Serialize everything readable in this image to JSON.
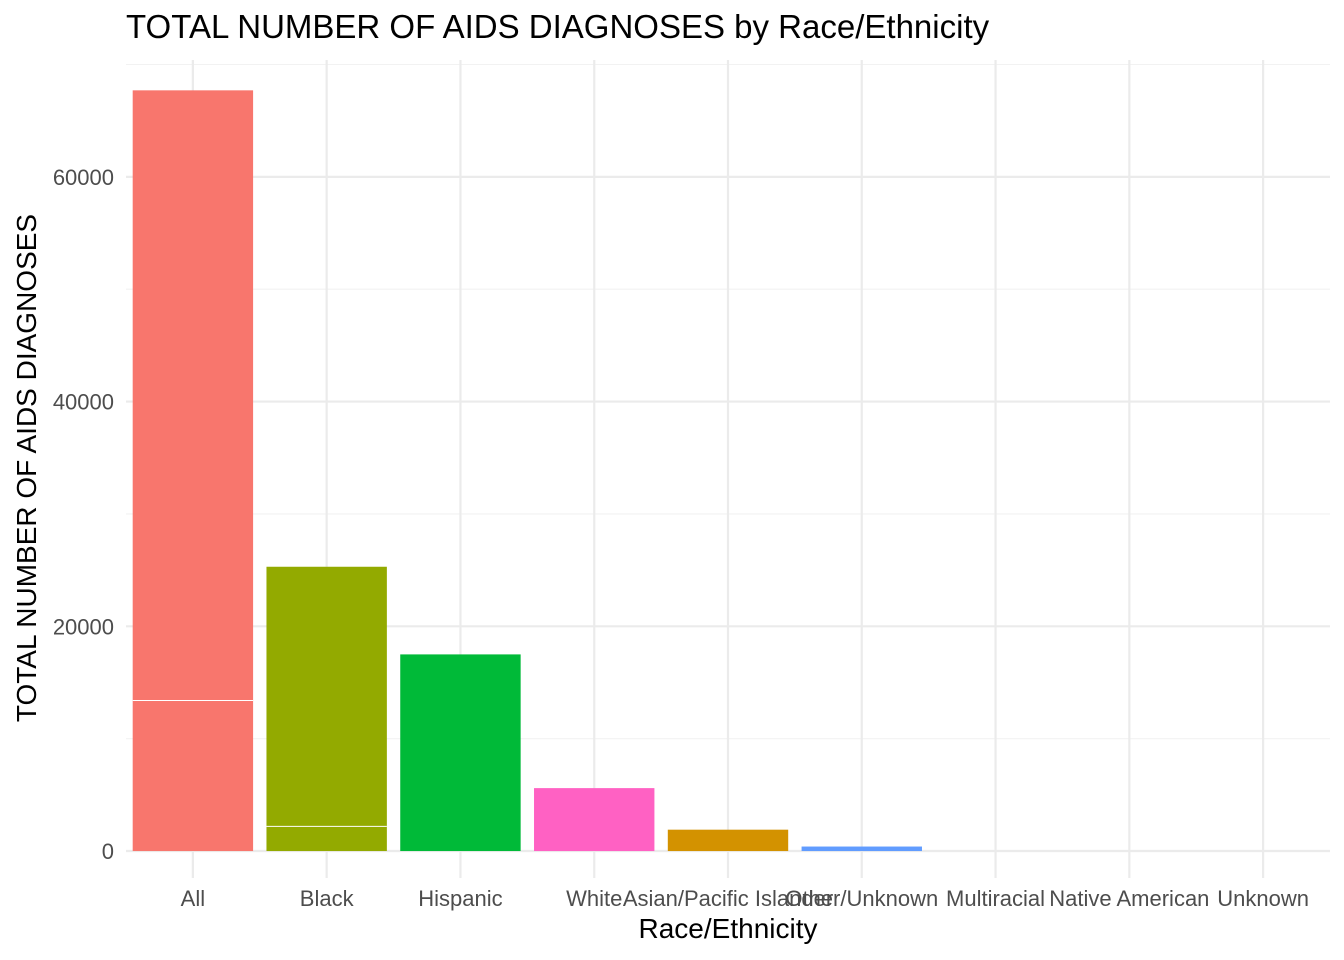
{
  "chart_data": {
    "type": "bar",
    "title": "TOTAL NUMBER OF AIDS DIAGNOSES by Race/Ethnicity",
    "xlabel": "Race/Ethnicity",
    "ylabel": "TOTAL NUMBER OF AIDS DIAGNOSES",
    "categories": [
      "All",
      "Black",
      "Hispanic",
      "White",
      "Asian/Pacific Islander",
      "Other/Unknown",
      "Multiracial",
      "Native American",
      "Unknown"
    ],
    "values": [
      67700,
      25300,
      17500,
      5600,
      1900,
      400,
      0,
      0,
      0
    ],
    "segment_boundaries": [
      [
        13400
      ],
      [
        2200
      ],
      [],
      [],
      [],
      [],
      [],
      [],
      []
    ],
    "colors": [
      "#F8766D",
      "#93AA00",
      "#00BA38",
      "#FF61C3",
      "#D39200",
      "#619CFF",
      "#00C19F",
      "#00B9E3",
      "#DB72FB"
    ],
    "ylim": [
      -2400,
      70400
    ],
    "yticks": [
      0,
      20000,
      40000,
      60000
    ],
    "y_minor_ticks": [
      10000,
      30000,
      50000,
      70000
    ],
    "grid": true,
    "legend": "none"
  }
}
